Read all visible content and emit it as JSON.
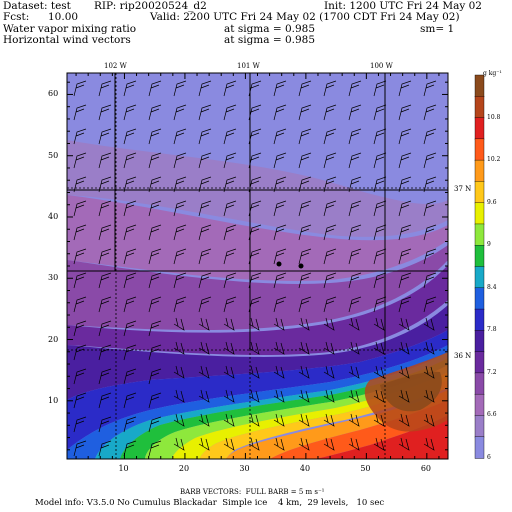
{
  "header": {
    "dataset_label": "Dataset: test",
    "rip_label": "RIP: rip20020524_d2",
    "init_label": "Init: 1200 UTC Fri 24 May 02",
    "fcst_label": "Fcst:",
    "fcst_value": "10.00",
    "valid_label": "Valid: 2200 UTC Fri 24 May 02 (1700 CDT Fri 24 May 02)",
    "field1": "Water vapor mixing ratio",
    "field1_level": "at sigma = 0.985",
    "field1_smooth": "sm= 1",
    "field2": "Horizontal wind vectors",
    "field2_level": "at sigma = 0.985"
  },
  "map": {
    "top_lon_labels": [
      "102 W",
      "101 W",
      "100 W"
    ],
    "right_lat_labels": [
      "37 N",
      "36 N"
    ],
    "x_ticks": [
      "10",
      "20",
      "30",
      "40",
      "50",
      "60"
    ],
    "y_ticks": [
      "10",
      "20",
      "30",
      "40",
      "50",
      "60"
    ]
  },
  "colorbar": {
    "units": "g kg⁻¹",
    "labels": [
      "10.8",
      "10.2",
      "9.6",
      "9",
      "8.4",
      "7.8",
      "7.2",
      "6.6",
      "6"
    ],
    "colors": [
      "#8b4a1c",
      "#b5451b",
      "#e02020",
      "#ff5a1a",
      "#ff9a1a",
      "#ffc81a",
      "#e8f000",
      "#8ee83c",
      "#1fbf3c",
      "#18a9c8",
      "#1f5fe0",
      "#2b2bc8",
      "#4a1fa0",
      "#6a2a9e",
      "#8a4aa8",
      "#a36ab8",
      "#9a7ec8",
      "#8a8ae0"
    ]
  },
  "footer": {
    "barb_legend": "BARB VECTORS:  FULL BARB = 5 m s⁻¹",
    "model_info": "Model info: V3.5.0 No Cumulus Blackadar  Simple ice    4 km,  29 levels,   10 sec"
  }
}
